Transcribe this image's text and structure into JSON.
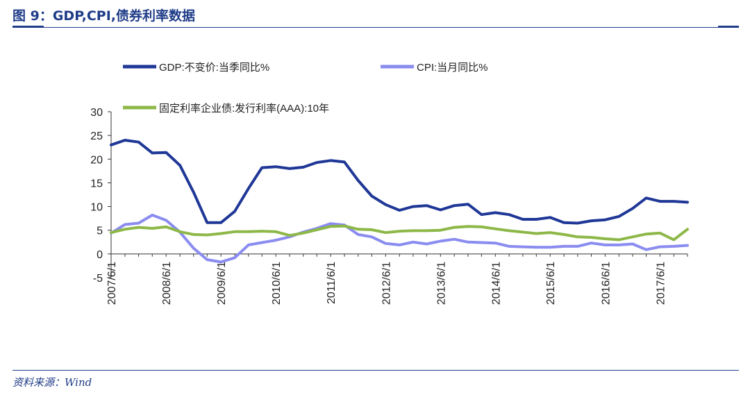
{
  "header": {
    "title": "图 9：GDP,CPI,债券利率数据"
  },
  "source": "资料来源：Wind",
  "chart_data": {
    "type": "line",
    "title": "",
    "xlabel": "",
    "ylabel": "",
    "ylim": [
      -5,
      30
    ],
    "yticks": [
      "30",
      "25",
      "20",
      "15",
      "10",
      "5",
      "0",
      "-5"
    ],
    "x_tick_labels": [
      "2007/6/1",
      "2008/6/1",
      "2009/6/1",
      "2010/6/1",
      "2011/6/1",
      "2012/6/1",
      "2013/6/1",
      "2014/6/1",
      "2015/6/1",
      "2016/6/1",
      "2017/6/1"
    ],
    "x_start": "2007/6/1",
    "x_end": "2017/12/1",
    "grid": false,
    "legend": "top",
    "series": [
      {
        "name": "GDP:不变价:当季同比%",
        "color": "#1f3796",
        "points": [
          [
            "2007/6/1",
            23.0
          ],
          [
            "2007/9/1",
            24.0
          ],
          [
            "2007/12/1",
            23.6
          ],
          [
            "2008/3/1",
            21.3
          ],
          [
            "2008/6/1",
            21.4
          ],
          [
            "2008/9/1",
            18.7
          ],
          [
            "2008/12/1",
            13.0
          ],
          [
            "2009/3/1",
            6.6
          ],
          [
            "2009/6/1",
            6.6
          ],
          [
            "2009/9/1",
            9.0
          ],
          [
            "2009/12/1",
            13.8
          ],
          [
            "2010/3/1",
            18.2
          ],
          [
            "2010/6/1",
            18.4
          ],
          [
            "2010/9/1",
            18.0
          ],
          [
            "2010/12/1",
            18.3
          ],
          [
            "2011/3/1",
            19.3
          ],
          [
            "2011/6/1",
            19.7
          ],
          [
            "2011/9/1",
            19.4
          ],
          [
            "2011/12/1",
            15.5
          ],
          [
            "2012/3/1",
            12.2
          ],
          [
            "2012/6/1",
            10.4
          ],
          [
            "2012/9/1",
            9.2
          ],
          [
            "2012/12/1",
            10.0
          ],
          [
            "2013/3/1",
            10.2
          ],
          [
            "2013/6/1",
            9.3
          ],
          [
            "2013/9/1",
            10.2
          ],
          [
            "2013/12/1",
            10.5
          ],
          [
            "2014/3/1",
            8.3
          ],
          [
            "2014/6/1",
            8.7
          ],
          [
            "2014/9/1",
            8.3
          ],
          [
            "2014/12/1",
            7.3
          ],
          [
            "2015/3/1",
            7.3
          ],
          [
            "2015/6/1",
            7.7
          ],
          [
            "2015/9/1",
            6.6
          ],
          [
            "2015/12/1",
            6.5
          ],
          [
            "2016/3/1",
            7.0
          ],
          [
            "2016/6/1",
            7.2
          ],
          [
            "2016/9/1",
            7.9
          ],
          [
            "2016/12/1",
            9.6
          ],
          [
            "2017/3/1",
            11.8
          ],
          [
            "2017/6/1",
            11.1
          ],
          [
            "2017/9/1",
            11.1
          ],
          [
            "2017/12/1",
            10.9
          ]
        ]
      },
      {
        "name": "CPI:当月同比%",
        "color": "#8a8cf0",
        "points": [
          [
            "2007/6/1",
            4.4
          ],
          [
            "2007/9/1",
            6.2
          ],
          [
            "2007/12/1",
            6.5
          ],
          [
            "2008/3/1",
            8.2
          ],
          [
            "2008/6/1",
            7.1
          ],
          [
            "2008/9/1",
            4.6
          ],
          [
            "2008/12/1",
            1.2
          ],
          [
            "2009/3/1",
            -1.2
          ],
          [
            "2009/6/1",
            -1.7
          ],
          [
            "2009/9/1",
            -0.8
          ],
          [
            "2009/12/1",
            1.9
          ],
          [
            "2010/3/1",
            2.4
          ],
          [
            "2010/6/1",
            2.9
          ],
          [
            "2010/9/1",
            3.6
          ],
          [
            "2010/12/1",
            4.6
          ],
          [
            "2011/3/1",
            5.4
          ],
          [
            "2011/6/1",
            6.4
          ],
          [
            "2011/9/1",
            6.1
          ],
          [
            "2011/12/1",
            4.1
          ],
          [
            "2012/3/1",
            3.6
          ],
          [
            "2012/6/1",
            2.2
          ],
          [
            "2012/9/1",
            1.9
          ],
          [
            "2012/12/1",
            2.5
          ],
          [
            "2013/3/1",
            2.1
          ],
          [
            "2013/6/1",
            2.7
          ],
          [
            "2013/9/1",
            3.1
          ],
          [
            "2013/12/1",
            2.5
          ],
          [
            "2014/3/1",
            2.4
          ],
          [
            "2014/6/1",
            2.3
          ],
          [
            "2014/9/1",
            1.6
          ],
          [
            "2014/12/1",
            1.5
          ],
          [
            "2015/3/1",
            1.4
          ],
          [
            "2015/6/1",
            1.4
          ],
          [
            "2015/9/1",
            1.6
          ],
          [
            "2015/12/1",
            1.6
          ],
          [
            "2016/3/1",
            2.3
          ],
          [
            "2016/6/1",
            1.9
          ],
          [
            "2016/9/1",
            1.9
          ],
          [
            "2016/12/1",
            2.1
          ],
          [
            "2017/3/1",
            0.9
          ],
          [
            "2017/6/1",
            1.5
          ],
          [
            "2017/9/1",
            1.6
          ],
          [
            "2017/12/1",
            1.8
          ]
        ]
      },
      {
        "name": "固定利率企业债:发行利率(AAA):10年",
        "color": "#8db848",
        "points": [
          [
            "2007/6/1",
            4.5
          ],
          [
            "2007/9/1",
            5.2
          ],
          [
            "2007/12/1",
            5.6
          ],
          [
            "2008/3/1",
            5.4
          ],
          [
            "2008/6/1",
            5.7
          ],
          [
            "2008/9/1",
            4.7
          ],
          [
            "2008/12/1",
            4.1
          ],
          [
            "2009/3/1",
            4.0
          ],
          [
            "2009/6/1",
            4.3
          ],
          [
            "2009/9/1",
            4.7
          ],
          [
            "2009/12/1",
            4.7
          ],
          [
            "2010/3/1",
            4.8
          ],
          [
            "2010/6/1",
            4.7
          ],
          [
            "2010/9/1",
            3.9
          ],
          [
            "2010/12/1",
            4.4
          ],
          [
            "2011/3/1",
            5.1
          ],
          [
            "2011/6/1",
            5.8
          ],
          [
            "2011/9/1",
            5.9
          ],
          [
            "2011/12/1",
            5.2
          ],
          [
            "2012/3/1",
            5.1
          ],
          [
            "2012/6/1",
            4.5
          ],
          [
            "2012/9/1",
            4.8
          ],
          [
            "2012/12/1",
            4.9
          ],
          [
            "2013/3/1",
            4.9
          ],
          [
            "2013/6/1",
            5.0
          ],
          [
            "2013/9/1",
            5.6
          ],
          [
            "2013/12/1",
            5.8
          ],
          [
            "2014/3/1",
            5.7
          ],
          [
            "2014/6/1",
            5.3
          ],
          [
            "2014/9/1",
            4.9
          ],
          [
            "2014/12/1",
            4.6
          ],
          [
            "2015/3/1",
            4.3
          ],
          [
            "2015/6/1",
            4.5
          ],
          [
            "2015/9/1",
            4.1
          ],
          [
            "2015/12/1",
            3.6
          ],
          [
            "2016/3/1",
            3.5
          ],
          [
            "2016/6/1",
            3.2
          ],
          [
            "2016/9/1",
            3.0
          ],
          [
            "2016/12/1",
            3.6
          ],
          [
            "2017/3/1",
            4.2
          ],
          [
            "2017/6/1",
            4.4
          ],
          [
            "2017/9/1",
            3.0
          ],
          [
            "2017/12/1",
            5.2
          ]
        ]
      }
    ]
  }
}
